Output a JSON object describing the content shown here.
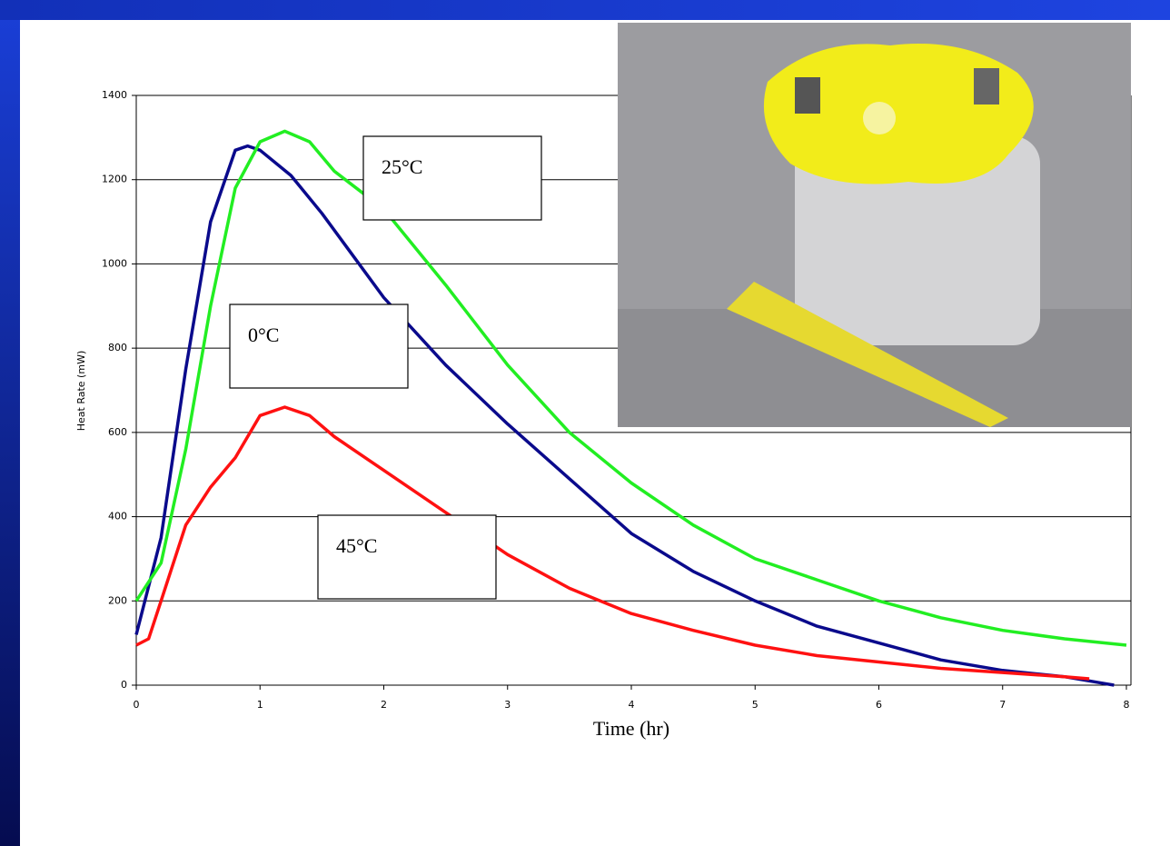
{
  "chart_data": {
    "type": "line",
    "ylabel": "Heat Rate (mW)",
    "xlabel": "Time (hr)",
    "xlim": [
      0,
      8
    ],
    "xticks": [
      0,
      1,
      2,
      3,
      4,
      5,
      6,
      7,
      8
    ],
    "ylim": [
      0,
      1400
    ],
    "yticks": [
      0,
      200,
      400,
      600,
      800,
      1000,
      1200,
      1400
    ],
    "grid": true,
    "series": [
      {
        "color": "#0a0a8c",
        "x": [
          0,
          0.2,
          0.4,
          0.6,
          0.8,
          0.9,
          1.0,
          1.25,
          1.5,
          2,
          2.5,
          3,
          3.5,
          4,
          4.5,
          5,
          5.5,
          6,
          6.5,
          7,
          7.5,
          7.8,
          7.9
        ],
        "values": [
          120,
          350,
          750,
          1100,
          1270,
          1280,
          1270,
          1210,
          1120,
          920,
          760,
          620,
          490,
          360,
          270,
          200,
          140,
          100,
          60,
          35,
          20,
          5,
          0
        ]
      },
      {
        "color": "#22ee22",
        "x": [
          0,
          0.2,
          0.4,
          0.6,
          0.8,
          1.0,
          1.2,
          1.4,
          1.6,
          2,
          2.5,
          3,
          3.5,
          4,
          4.5,
          5,
          5.5,
          6,
          6.5,
          7,
          7.5,
          8
        ],
        "values": [
          200,
          290,
          560,
          900,
          1180,
          1290,
          1315,
          1290,
          1220,
          1130,
          950,
          760,
          600,
          480,
          380,
          300,
          250,
          200,
          160,
          130,
          110,
          95
        ]
      },
      {
        "color": "#ff1111",
        "x": [
          0,
          0.1,
          0.2,
          0.4,
          0.6,
          0.8,
          1.0,
          1.2,
          1.4,
          1.6,
          2,
          2.5,
          3,
          3.5,
          4,
          4.5,
          5,
          5.5,
          6,
          6.5,
          7,
          7.5,
          7.7
        ],
        "values": [
          95,
          110,
          200,
          380,
          470,
          540,
          640,
          660,
          640,
          590,
          510,
          410,
          310,
          230,
          170,
          130,
          95,
          70,
          55,
          40,
          30,
          20,
          15
        ]
      }
    ],
    "annotations": [
      "25°C",
      "0°C",
      "45°C"
    ]
  }
}
